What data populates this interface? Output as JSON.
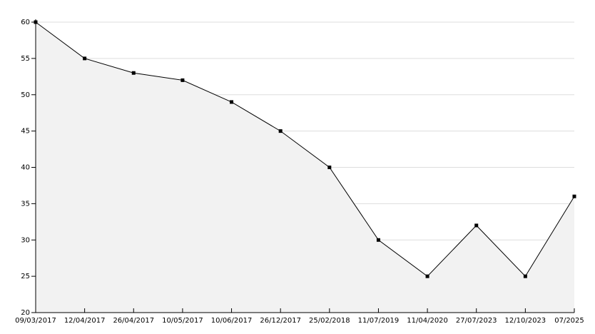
{
  "chart_data": {
    "type": "area",
    "categories": [
      "09/03/2017",
      "12/04/2017",
      "26/04/2017",
      "10/05/2017",
      "10/06/2017",
      "26/12/2017",
      "25/02/2018",
      "11/07/2019",
      "11/04/2020",
      "27/07/2023",
      "12/10/2023",
      "07/2025"
    ],
    "values": [
      60,
      55,
      53,
      52,
      49,
      45,
      40,
      30,
      25,
      32,
      25,
      36
    ],
    "color": "#000000",
    "fill": "#f2f2f2",
    "ylim": [
      20,
      60
    ],
    "yticks": [
      20,
      25,
      30,
      35,
      40,
      45,
      50,
      55,
      60
    ],
    "grid": true
  }
}
